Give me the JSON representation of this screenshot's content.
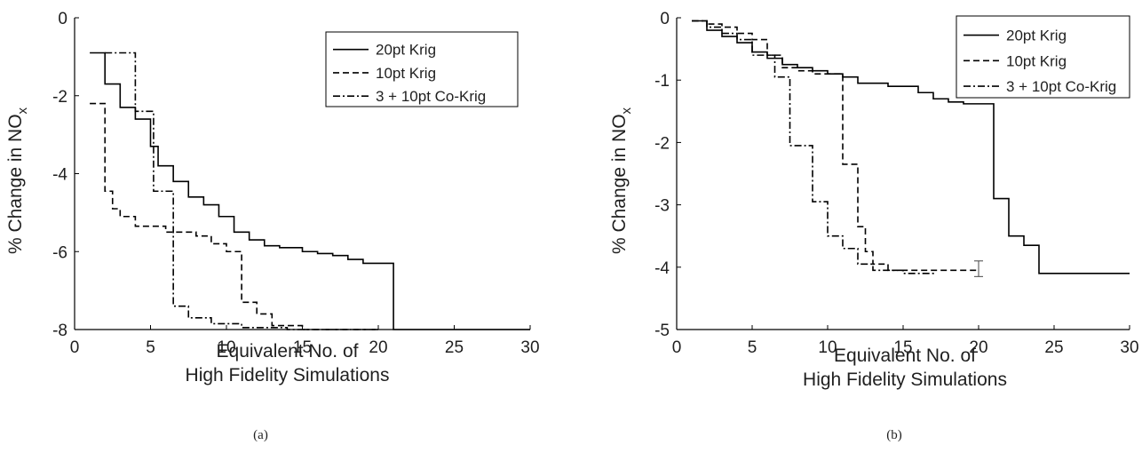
{
  "chart_data": [
    {
      "type": "line",
      "panel_label": "(a)",
      "xlabel_lines": [
        "Equivalent No. of",
        "High Fidelity Simulations"
      ],
      "ylabel": "% Change in NO",
      "ylabel_sub": "x",
      "xlim": [
        0,
        30
      ],
      "ylim": [
        -8,
        0
      ],
      "xticks": [
        "0",
        "5",
        "10",
        "15",
        "20",
        "25",
        "30"
      ],
      "yticks": [
        "0",
        "-2",
        "-4",
        "-6",
        "-8"
      ],
      "grid": false,
      "legend_position": "top-right",
      "series": [
        {
          "name": "20pt Krig",
          "style": "solid",
          "x": [
            1,
            2,
            2,
            3,
            3,
            4,
            4,
            5,
            5,
            5.5,
            5.5,
            6.5,
            6.5,
            7.5,
            7.5,
            8.5,
            8.5,
            9.5,
            9.5,
            10.5,
            10.5,
            11.5,
            11.5,
            12.5,
            12.5,
            13.5,
            13.5,
            15,
            15,
            16,
            16,
            17,
            17,
            18,
            18,
            19,
            19,
            21,
            21,
            30
          ],
          "y": [
            -0.9,
            -0.9,
            -1.7,
            -1.7,
            -2.3,
            -2.3,
            -2.6,
            -2.6,
            -3.3,
            -3.3,
            -3.8,
            -3.8,
            -4.2,
            -4.2,
            -4.6,
            -4.6,
            -4.8,
            -4.8,
            -5.1,
            -5.1,
            -5.5,
            -5.5,
            -5.7,
            -5.7,
            -5.85,
            -5.85,
            -5.9,
            -5.9,
            -6.0,
            -6.0,
            -6.05,
            -6.05,
            -6.1,
            -6.1,
            -6.2,
            -6.2,
            -6.3,
            -6.3,
            -8.0,
            -8.0
          ]
        },
        {
          "name": "10pt Krig",
          "style": "dashed",
          "x": [
            1,
            2,
            2,
            2.5,
            2.5,
            3,
            3,
            4,
            4,
            6,
            6,
            8,
            8,
            9,
            9,
            10,
            10,
            11,
            11,
            12,
            12,
            13,
            13,
            15,
            15,
            20
          ],
          "y": [
            -2.2,
            -2.2,
            -4.45,
            -4.45,
            -4.9,
            -4.9,
            -5.1,
            -5.1,
            -5.35,
            -5.35,
            -5.5,
            -5.5,
            -5.6,
            -5.6,
            -5.8,
            -5.8,
            -6.0,
            -6.0,
            -7.3,
            -7.3,
            -7.6,
            -7.6,
            -7.9,
            -7.9,
            -8.0,
            -8.0
          ]
        },
        {
          "name": "3 + 10pt Co-Krig",
          "style": "dashdot",
          "x": [
            2,
            4,
            4,
            5.2,
            5.2,
            6.5,
            6.5,
            7.5,
            7.5,
            9,
            9,
            11,
            11,
            14,
            14,
            20
          ],
          "y": [
            -0.9,
            -0.9,
            -2.4,
            -2.4,
            -4.45,
            -4.45,
            -7.4,
            -7.4,
            -7.7,
            -7.7,
            -7.85,
            -7.85,
            -7.95,
            -7.95,
            -8.0,
            -8.0
          ]
        }
      ]
    },
    {
      "type": "line",
      "panel_label": "(b)",
      "xlabel_lines": [
        "Equivalent No. of",
        "High Fidelity Simulations"
      ],
      "ylabel": "% Change in NO",
      "ylabel_sub": "x",
      "xlim": [
        0,
        30
      ],
      "ylim": [
        -5,
        0
      ],
      "xticks": [
        "0",
        "5",
        "10",
        "15",
        "20",
        "25",
        "30"
      ],
      "yticks": [
        "0",
        "-1",
        "-2",
        "-3",
        "-4",
        "-5"
      ],
      "grid": false,
      "legend_position": "top-right",
      "series": [
        {
          "name": "20pt Krig",
          "style": "solid",
          "x": [
            1,
            2,
            2,
            3,
            3,
            4,
            4,
            5,
            5,
            6,
            6,
            7,
            7,
            8,
            8,
            9,
            9,
            10,
            10,
            11,
            11,
            12,
            12,
            14,
            14,
            16,
            16,
            17,
            17,
            18,
            18,
            19,
            19,
            21,
            21,
            22,
            22,
            23,
            23,
            24,
            24,
            30
          ],
          "y": [
            -0.05,
            -0.05,
            -0.2,
            -0.2,
            -0.3,
            -0.3,
            -0.4,
            -0.4,
            -0.55,
            -0.55,
            -0.65,
            -0.65,
            -0.75,
            -0.75,
            -0.8,
            -0.8,
            -0.85,
            -0.85,
            -0.9,
            -0.9,
            -0.95,
            -0.95,
            -1.05,
            -1.05,
            -1.1,
            -1.1,
            -1.2,
            -1.2,
            -1.3,
            -1.3,
            -1.35,
            -1.35,
            -1.38,
            -1.38,
            -2.9,
            -2.9,
            -3.5,
            -3.5,
            -3.65,
            -3.65,
            -4.1,
            -4.1
          ]
        },
        {
          "name": "10pt Krig",
          "style": "dashed",
          "x": [
            1,
            2,
            2,
            3,
            3,
            4,
            4,
            5,
            5,
            6,
            6,
            7,
            7,
            8,
            8,
            9,
            9,
            11,
            11,
            12,
            12,
            12.5,
            12.5,
            13,
            13,
            14,
            14,
            20
          ],
          "y": [
            -0.05,
            -0.05,
            -0.1,
            -0.1,
            -0.15,
            -0.15,
            -0.25,
            -0.25,
            -0.35,
            -0.35,
            -0.6,
            -0.6,
            -0.8,
            -0.8,
            -0.85,
            -0.85,
            -0.9,
            -0.9,
            -2.35,
            -2.35,
            -3.35,
            -3.35,
            -3.75,
            -3.75,
            -3.95,
            -3.95,
            -4.05,
            -4.05
          ]
        },
        {
          "name": "3 + 10pt Co-Krig",
          "style": "dashdot",
          "x": [
            1,
            2,
            2,
            3,
            3,
            4,
            4,
            5,
            5,
            6.5,
            6.5,
            7.5,
            7.5,
            9,
            9,
            10,
            10,
            11,
            11,
            12,
            12,
            13,
            13,
            15,
            15,
            17,
            17
          ],
          "y": [
            -0.05,
            -0.05,
            -0.15,
            -0.15,
            -0.25,
            -0.25,
            -0.35,
            -0.35,
            -0.6,
            -0.6,
            -0.95,
            -0.95,
            -2.05,
            -2.05,
            -2.95,
            -2.95,
            -3.5,
            -3.5,
            -3.7,
            -3.7,
            -3.95,
            -3.95,
            -4.05,
            -4.05,
            -4.1,
            -4.1,
            -4.05
          ]
        }
      ],
      "error_bar": {
        "x": 20,
        "y": -4.05,
        "low": -4.15,
        "high": -3.9
      }
    }
  ]
}
